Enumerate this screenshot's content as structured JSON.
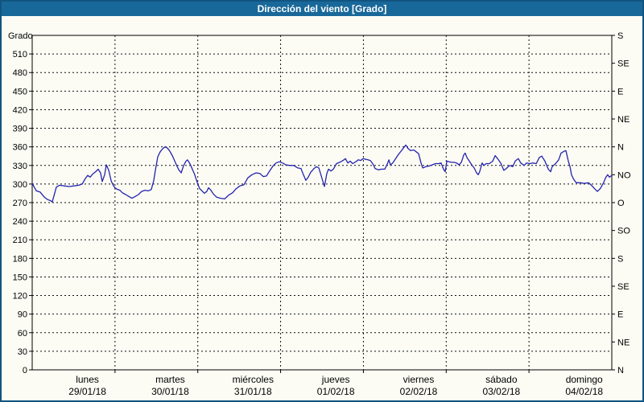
{
  "window": {
    "title": "Dirección del viento [Grado]"
  },
  "colors": {
    "frame": "#11547f",
    "titlebar_bg": "#19689a",
    "titlebar_text": "#ffffff",
    "background": "#fcfcf5",
    "grid": "#111111",
    "axis": "#000000",
    "line": "#2323af"
  },
  "chart_data": {
    "type": "line",
    "title": "Dirección del viento [Grado]",
    "ylabel_left": "Grado",
    "grid": {
      "h_step_deg": 30,
      "v_at_day_boundaries": true,
      "dashed": true
    },
    "legend": "none",
    "y_axis_left": {
      "min": 0,
      "max": 540,
      "tick_step": 30,
      "labeled_min": 0,
      "labeled_max": 510
    },
    "y_axis_right": {
      "tick_step_deg": 45,
      "labels": [
        {
          "deg": 0,
          "label": "N"
        },
        {
          "deg": 45,
          "label": "NE"
        },
        {
          "deg": 90,
          "label": "E"
        },
        {
          "deg": 135,
          "label": "SE"
        },
        {
          "deg": 180,
          "label": "S"
        },
        {
          "deg": 225,
          "label": "SO"
        },
        {
          "deg": 270,
          "label": "O"
        },
        {
          "deg": 315,
          "label": "NO"
        },
        {
          "deg": 360,
          "label": "N"
        },
        {
          "deg": 405,
          "label": "NE"
        },
        {
          "deg": 450,
          "label": "E"
        },
        {
          "deg": 495,
          "label": "SE"
        },
        {
          "deg": 540,
          "label": "S"
        }
      ]
    },
    "x_axis": {
      "unit": "hours_since_start",
      "min": 0,
      "max": 168,
      "day_tick_hours": [
        24,
        48,
        72,
        96,
        120,
        144
      ],
      "days": [
        {
          "name": "lunes",
          "date": "29/01/18"
        },
        {
          "name": "martes",
          "date": "30/01/18"
        },
        {
          "name": "miércoles",
          "date": "31/01/18"
        },
        {
          "name": "jueves",
          "date": "01/02/18"
        },
        {
          "name": "viernes",
          "date": "02/02/18"
        },
        {
          "name": "sábado",
          "date": "03/02/18"
        },
        {
          "name": "domingo",
          "date": "04/02/18"
        }
      ]
    },
    "series": [
      {
        "name": "Dirección del viento",
        "color": "#2323af",
        "points": [
          [
            0,
            301
          ],
          [
            1.2,
            289
          ],
          [
            2.3,
            287
          ],
          [
            3.5,
            279
          ],
          [
            4.4,
            275
          ],
          [
            5.4,
            273
          ],
          [
            5.8,
            271
          ],
          [
            6.5,
            285
          ],
          [
            7,
            295
          ],
          [
            7.9,
            298
          ],
          [
            9.3,
            297
          ],
          [
            10.7,
            296
          ],
          [
            12.1,
            297
          ],
          [
            13.5,
            298
          ],
          [
            14.5,
            300
          ],
          [
            15.4,
            309
          ],
          [
            16.1,
            314
          ],
          [
            16.8,
            311
          ],
          [
            17.5,
            316
          ],
          [
            18.4,
            320
          ],
          [
            19.1,
            324
          ],
          [
            19.8,
            318
          ],
          [
            20.3,
            304
          ],
          [
            21,
            315
          ],
          [
            21.5,
            331
          ],
          [
            22.2,
            322
          ],
          [
            22.9,
            305
          ],
          [
            23.3,
            300
          ],
          [
            23.8,
            295
          ],
          [
            24.5,
            292
          ],
          [
            25.4,
            290
          ],
          [
            26.1,
            286
          ],
          [
            27.1,
            283
          ],
          [
            28,
            280
          ],
          [
            28.9,
            277
          ],
          [
            29.9,
            280
          ],
          [
            30.8,
            283
          ],
          [
            31.7,
            288
          ],
          [
            32.7,
            290
          ],
          [
            33.6,
            289
          ],
          [
            34.5,
            291
          ],
          [
            35.2,
            305
          ],
          [
            35.7,
            322
          ],
          [
            36.4,
            344
          ],
          [
            37.1,
            352
          ],
          [
            37.8,
            357
          ],
          [
            38.5,
            360
          ],
          [
            39.2,
            358
          ],
          [
            39.9,
            353
          ],
          [
            40.6,
            346
          ],
          [
            41.1,
            340
          ],
          [
            41.8,
            331
          ],
          [
            42.5,
            323
          ],
          [
            43.2,
            318
          ],
          [
            43.9,
            330
          ],
          [
            44.6,
            337
          ],
          [
            45,
            339
          ],
          [
            45.7,
            333
          ],
          [
            46.4,
            324
          ],
          [
            47.1,
            315
          ],
          [
            47.8,
            303
          ],
          [
            48.5,
            293
          ],
          [
            49.2,
            289
          ],
          [
            49.9,
            285
          ],
          [
            50.6,
            288
          ],
          [
            51.1,
            294
          ],
          [
            51.8,
            290
          ],
          [
            52.5,
            284
          ],
          [
            53.4,
            279
          ],
          [
            54.6,
            277
          ],
          [
            55.8,
            276
          ],
          [
            56.9,
            282
          ],
          [
            58.1,
            286
          ],
          [
            59,
            292
          ],
          [
            60.2,
            297
          ],
          [
            61.4,
            299
          ],
          [
            62.5,
            310
          ],
          [
            63.7,
            315
          ],
          [
            64.9,
            318
          ],
          [
            66,
            317
          ],
          [
            67,
            312
          ],
          [
            67.9,
            313
          ],
          [
            68.8,
            321
          ],
          [
            69.8,
            329
          ],
          [
            70.7,
            334
          ],
          [
            71.6,
            336
          ],
          [
            72.6,
            334
          ],
          [
            73.5,
            331
          ],
          [
            74.7,
            330
          ],
          [
            75.8,
            330
          ],
          [
            77,
            326
          ],
          [
            77.9,
            325
          ],
          [
            78.6,
            315
          ],
          [
            79.3,
            306
          ],
          [
            80,
            311
          ],
          [
            80.7,
            319
          ],
          [
            81.7,
            325
          ],
          [
            82.4,
            328
          ],
          [
            83.1,
            326
          ],
          [
            84,
            309
          ],
          [
            84.7,
            296
          ],
          [
            85.4,
            317
          ],
          [
            85.9,
            324
          ],
          [
            86.6,
            321
          ],
          [
            87.3,
            324
          ],
          [
            88.2,
            333
          ],
          [
            89.1,
            335
          ],
          [
            90.1,
            338
          ],
          [
            90.8,
            341
          ],
          [
            91.5,
            334
          ],
          [
            92.2,
            337
          ],
          [
            92.9,
            333
          ],
          [
            93.8,
            336
          ],
          [
            94.5,
            339
          ],
          [
            95.2,
            338
          ],
          [
            95.9,
            341
          ],
          [
            96.6,
            340
          ],
          [
            97.3,
            339
          ],
          [
            98,
            338
          ],
          [
            98.7,
            333
          ],
          [
            99.4,
            325
          ],
          [
            100.3,
            323
          ],
          [
            101.3,
            324
          ],
          [
            102.2,
            324
          ],
          [
            102.9,
            332
          ],
          [
            103.4,
            339
          ],
          [
            103.8,
            331
          ],
          [
            104.5,
            334
          ],
          [
            105.2,
            340
          ],
          [
            106.2,
            348
          ],
          [
            106.9,
            353
          ],
          [
            107.6,
            358
          ],
          [
            108.3,
            363
          ],
          [
            109,
            357
          ],
          [
            109.7,
            354
          ],
          [
            110.6,
            355
          ],
          [
            111.3,
            352
          ],
          [
            112,
            349
          ],
          [
            112.7,
            334
          ],
          [
            113.2,
            326
          ],
          [
            114.1,
            328
          ],
          [
            115,
            329
          ],
          [
            116,
            331
          ],
          [
            116.9,
            333
          ],
          [
            117.8,
            333
          ],
          [
            118.5,
            334
          ],
          [
            119.2,
            324
          ],
          [
            119.7,
            320
          ],
          [
            120.2,
            337
          ],
          [
            120.9,
            336
          ],
          [
            121.6,
            335
          ],
          [
            122.3,
            335
          ],
          [
            123,
            334
          ],
          [
            123.7,
            331
          ],
          [
            124.4,
            335
          ],
          [
            125.1,
            347
          ],
          [
            125.5,
            350
          ],
          [
            126,
            343
          ],
          [
            126.7,
            337
          ],
          [
            127.4,
            331
          ],
          [
            128.1,
            326
          ],
          [
            128.8,
            318
          ],
          [
            129.3,
            315
          ],
          [
            129.7,
            320
          ],
          [
            130.4,
            334
          ],
          [
            130.9,
            330
          ],
          [
            131.6,
            333
          ],
          [
            132.5,
            333
          ],
          [
            133.5,
            337
          ],
          [
            134.2,
            346
          ],
          [
            134.9,
            341
          ],
          [
            135.8,
            334
          ],
          [
            136.7,
            322
          ],
          [
            137.4,
            325
          ],
          [
            138.4,
            330
          ],
          [
            139.3,
            328
          ],
          [
            140,
            337
          ],
          [
            140.9,
            341
          ],
          [
            141.6,
            334
          ],
          [
            142.6,
            330
          ],
          [
            143.3,
            334
          ],
          [
            144.2,
            333
          ],
          [
            145.1,
            334
          ],
          [
            146.1,
            333
          ],
          [
            147,
            343
          ],
          [
            147.7,
            345
          ],
          [
            148.6,
            337
          ],
          [
            149.6,
            324
          ],
          [
            150.3,
            320
          ],
          [
            150.7,
            328
          ],
          [
            151.7,
            333
          ],
          [
            152.6,
            339
          ],
          [
            153.3,
            350
          ],
          [
            154.2,
            353
          ],
          [
            154.7,
            354
          ],
          [
            155.4,
            337
          ],
          [
            155.9,
            328
          ],
          [
            156.3,
            315
          ],
          [
            157,
            307
          ],
          [
            157.7,
            302
          ],
          [
            158.9,
            302
          ],
          [
            160,
            301
          ],
          [
            161.2,
            302
          ],
          [
            162.1,
            298
          ],
          [
            163.1,
            292
          ],
          [
            163.8,
            288
          ],
          [
            164.7,
            293
          ],
          [
            165.6,
            302
          ],
          [
            166.3,
            311
          ],
          [
            166.8,
            315
          ],
          [
            167.3,
            311
          ],
          [
            168,
            314
          ]
        ]
      }
    ]
  }
}
